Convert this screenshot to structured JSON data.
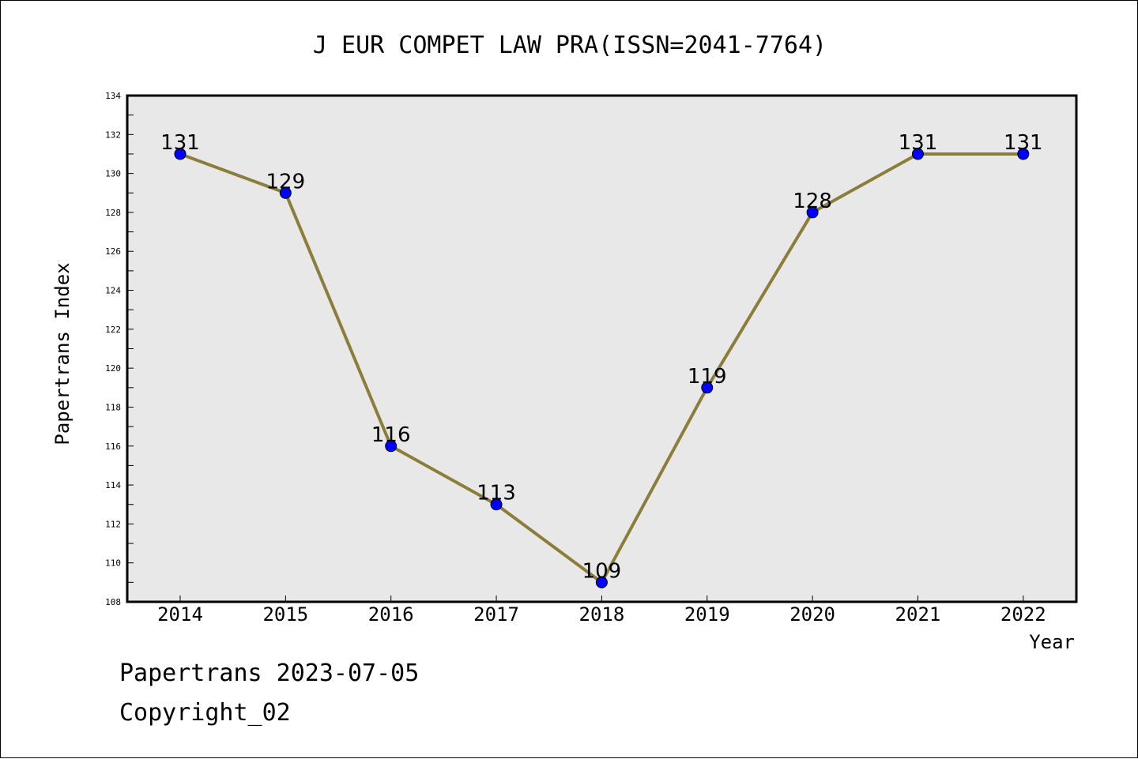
{
  "chart_data": {
    "type": "line",
    "title": "J EUR COMPET LAW PRA(ISSN=2041-7764)",
    "xlabel": "Year",
    "ylabel": "Papertrans Index",
    "categories": [
      "2014",
      "2015",
      "2016",
      "2017",
      "2018",
      "2019",
      "2020",
      "2021",
      "2022"
    ],
    "series": [
      {
        "values": [
          131,
          129,
          116,
          113,
          109,
          119,
          128,
          131,
          131
        ]
      }
    ],
    "data_labels": [
      "131",
      "129",
      "116",
      "113",
      "109",
      "119",
      "128",
      "131",
      "131"
    ],
    "ylim": [
      108,
      134
    ],
    "y_ticks": [
      "108",
      "110",
      "112",
      "114",
      "116",
      "118",
      "120",
      "122",
      "124",
      "126",
      "128",
      "130",
      "132",
      "134"
    ],
    "grid": false,
    "legend": "none",
    "colors": {
      "line": "#8b7d3a",
      "marker": "#0000ff",
      "plot_background": "#e8e8e8"
    }
  },
  "footer": {
    "date_text": "Papertrans 2023-07-05",
    "copyright_text": "Copyright_02"
  }
}
